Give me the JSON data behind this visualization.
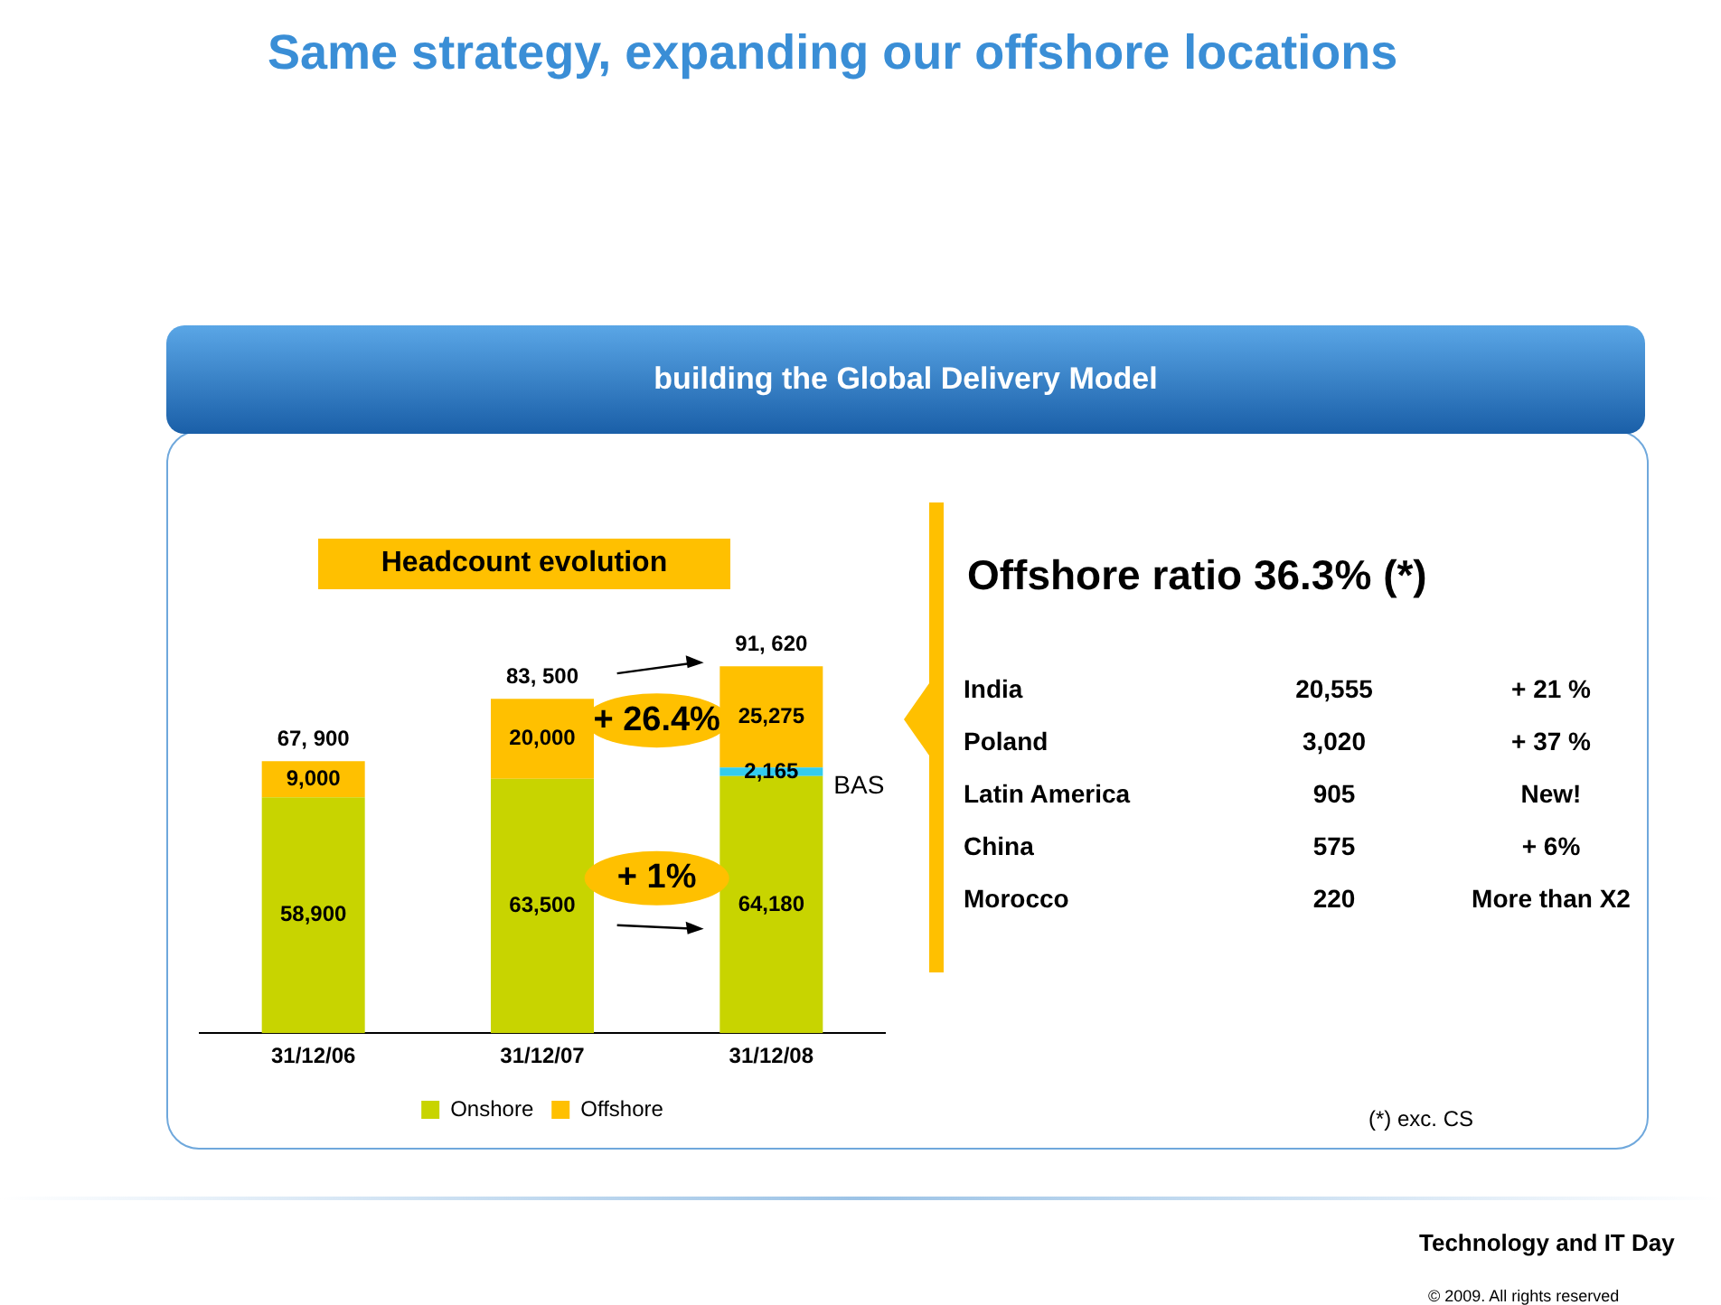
{
  "chart_data": {
    "type": "bar",
    "stacked": true,
    "title": "Same strategy, expanding our offshore locations",
    "subtitle": "building the Global Delivery Model",
    "categories": [
      "31/12/06",
      "31/12/07",
      "31/12/08"
    ],
    "series": [
      {
        "name": "Onshore",
        "color": "#c8d400",
        "values": [
          58900,
          63500,
          64180
        ],
        "value_labels": [
          "58,900",
          "63,500",
          "64,180"
        ]
      },
      {
        "name": "BAS",
        "color": "#33ccee",
        "values": [
          null,
          null,
          2165
        ],
        "value_labels": [
          null,
          null,
          "2,165"
        ]
      },
      {
        "name": "Offshore",
        "color": "#ffc000",
        "values": [
          9000,
          20000,
          25275
        ],
        "value_labels": [
          "9,000",
          "20,000",
          "25,275"
        ]
      }
    ],
    "totals": [
      "67, 900",
      "83, 500",
      "91, 620"
    ],
    "legend": "bottom",
    "grid": false,
    "annotations": [
      "+ 26.4%",
      "+ 1%",
      "Headcount evolution",
      "Offshore ratio 36.3% (*)",
      "India",
      "20,555",
      "+ 21 %",
      "Poland",
      "3,020",
      "+ 37 %",
      "Latin America",
      "905",
      "New!",
      "China",
      "575",
      "+  6%",
      "Morocco",
      "220",
      "More than X2",
      "(*) exc. CS",
      "Technology and IT Day",
      "© 2009. All rights reserved"
    ]
  }
}
